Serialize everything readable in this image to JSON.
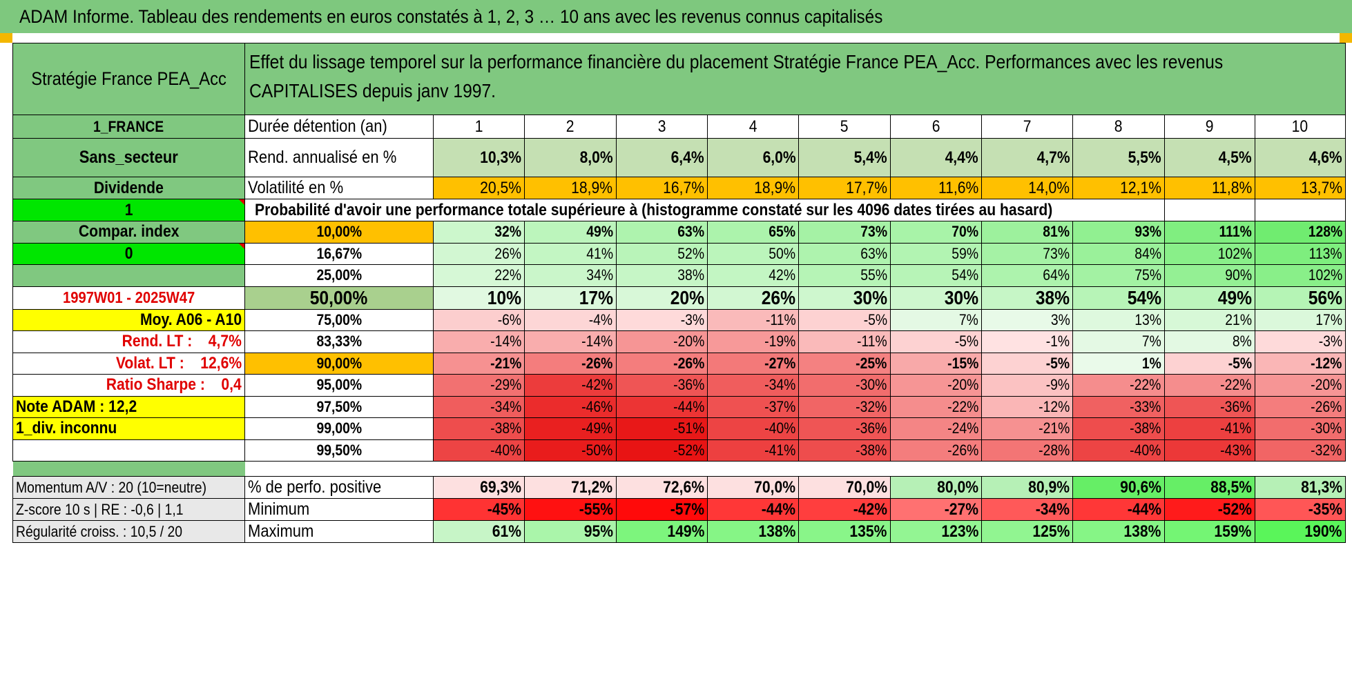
{
  "title": "ADAM Informe. Tableau des rendements en euros constatés à 1, 2, 3 … 10 ans avec les revenus connus capitalisés",
  "header": {
    "fund_name": "Stratégie France PEA_Acc",
    "description": "Effet du lissage temporel sur la performance financière du placement Stratégie France PEA_Acc. Performances avec les revenus CAPITALISES depuis janv 1997."
  },
  "left": {
    "country": "1_FRANCE",
    "sector": "Sans_secteur",
    "dividend_label": "Dividende",
    "dividend_value": "1",
    "compar_label": "Compar. index",
    "compar_value": "0",
    "period": "1997W01 - 2025W47",
    "moy": "Moy. A06 - A10",
    "rend_lt": "Rend. LT :    4,7%",
    "volat_lt": "Volat. LT :    12,6%",
    "sharpe": "Ratio Sharpe :    0,4",
    "note": "Note ADAM : 12,2",
    "div": "1_div. inconnu",
    "momentum": "Momentum A/V : 20 (10=neutre)",
    "zscore": "Z-score 10 s | RE : -0,6 | 1,1",
    "regularite": "Régularité croiss. : 10,5 / 20"
  },
  "labels": {
    "duree": "Durée détention (an)",
    "rend": "Rend. annualisé en %",
    "vol": "Volatilité en %",
    "proba": "Probabilité d'avoir une performance totale supérieure à (histogramme constaté sur les 4096 dates tirées au hasard)",
    "pct_pos": "% de perfo. positive",
    "minimum": "Minimum",
    "maximum": "Maximum"
  },
  "years": [
    "1",
    "2",
    "3",
    "4",
    "5",
    "6",
    "7",
    "8",
    "9",
    "10"
  ],
  "rend": [
    "10,3%",
    "8,0%",
    "6,4%",
    "6,0%",
    "5,4%",
    "4,4%",
    "4,7%",
    "5,5%",
    "4,5%",
    "4,6%"
  ],
  "vol": [
    "20,5%",
    "18,9%",
    "16,7%",
    "18,9%",
    "17,7%",
    "11,6%",
    "14,0%",
    "12,1%",
    "11,8%",
    "13,7%"
  ],
  "prob_rows": [
    {
      "pct": "10,00%",
      "vals": [
        "32%",
        "49%",
        "63%",
        "65%",
        "73%",
        "70%",
        "81%",
        "93%",
        "111%",
        "128%"
      ]
    },
    {
      "pct": "16,67%",
      "vals": [
        "26%",
        "41%",
        "52%",
        "50%",
        "63%",
        "59%",
        "73%",
        "84%",
        "102%",
        "113%"
      ]
    },
    {
      "pct": "25,00%",
      "vals": [
        "22%",
        "34%",
        "38%",
        "42%",
        "55%",
        "54%",
        "64%",
        "75%",
        "90%",
        "102%"
      ]
    },
    {
      "pct": "50,00%",
      "vals": [
        "10%",
        "17%",
        "20%",
        "26%",
        "30%",
        "30%",
        "38%",
        "54%",
        "49%",
        "56%"
      ]
    },
    {
      "pct": "75,00%",
      "vals": [
        "-6%",
        "-4%",
        "-3%",
        "-11%",
        "-5%",
        "7%",
        "3%",
        "13%",
        "21%",
        "17%"
      ]
    },
    {
      "pct": "83,33%",
      "vals": [
        "-14%",
        "-14%",
        "-20%",
        "-19%",
        "-11%",
        "-5%",
        "-1%",
        "7%",
        "8%",
        "-3%"
      ]
    },
    {
      "pct": "90,00%",
      "vals": [
        "-21%",
        "-26%",
        "-26%",
        "-27%",
        "-25%",
        "-15%",
        "-5%",
        "1%",
        "-5%",
        "-12%"
      ]
    },
    {
      "pct": "95,00%",
      "vals": [
        "-29%",
        "-42%",
        "-36%",
        "-34%",
        "-30%",
        "-20%",
        "-9%",
        "-22%",
        "-22%",
        "-20%"
      ]
    },
    {
      "pct": "97,50%",
      "vals": [
        "-34%",
        "-46%",
        "-44%",
        "-37%",
        "-32%",
        "-22%",
        "-12%",
        "-33%",
        "-36%",
        "-26%"
      ]
    },
    {
      "pct": "99,00%",
      "vals": [
        "-38%",
        "-49%",
        "-51%",
        "-40%",
        "-36%",
        "-24%",
        "-21%",
        "-38%",
        "-41%",
        "-30%"
      ]
    },
    {
      "pct": "99,50%",
      "vals": [
        "-40%",
        "-50%",
        "-52%",
        "-41%",
        "-38%",
        "-26%",
        "-28%",
        "-40%",
        "-43%",
        "-32%"
      ]
    }
  ],
  "pct_pos": [
    "69,3%",
    "71,2%",
    "72,6%",
    "70,0%",
    "70,0%",
    "80,0%",
    "80,9%",
    "90,6%",
    "88,5%",
    "81,3%"
  ],
  "minimum": [
    "-45%",
    "-55%",
    "-57%",
    "-44%",
    "-42%",
    "-27%",
    "-34%",
    "-44%",
    "-52%",
    "-35%"
  ],
  "maximum": [
    "61%",
    "95%",
    "149%",
    "138%",
    "135%",
    "123%",
    "125%",
    "138%",
    "159%",
    "190%"
  ],
  "colors": {
    "header_green": "#80c880",
    "bright_green": "#00e600",
    "orange": "#ffc000",
    "yellow": "#ffff00",
    "red_text": "#e00000"
  }
}
